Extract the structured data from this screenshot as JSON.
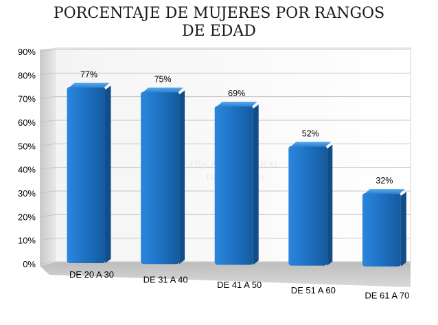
{
  "chart_data": {
    "type": "bar",
    "title": "PORCENTAJE DE MUJERES POR RANGOS DE EDAD",
    "title_lines": [
      "PORCENTAJE DE MUJERES POR RANGOS",
      "DE EDAD"
    ],
    "categories": [
      "DE 20 A 30",
      "DE 31 A 40",
      "DE 41 A 50",
      "DE 51 A 60",
      "DE 61 A 70"
    ],
    "values": [
      77,
      75,
      69,
      52,
      32
    ],
    "data_labels": [
      "77%",
      "75%",
      "69%",
      "52%",
      "32%"
    ],
    "y_ticks": [
      "0%",
      "10%",
      "20%",
      "30%",
      "40%",
      "50%",
      "60%",
      "70%",
      "80%",
      "90%"
    ],
    "ylim": [
      0,
      90
    ],
    "grid": true,
    "bar_color": "#1f6fc0",
    "watermark_lines": [
      "FISCALIA GENERAL",
      "DEL ESTADO"
    ]
  }
}
